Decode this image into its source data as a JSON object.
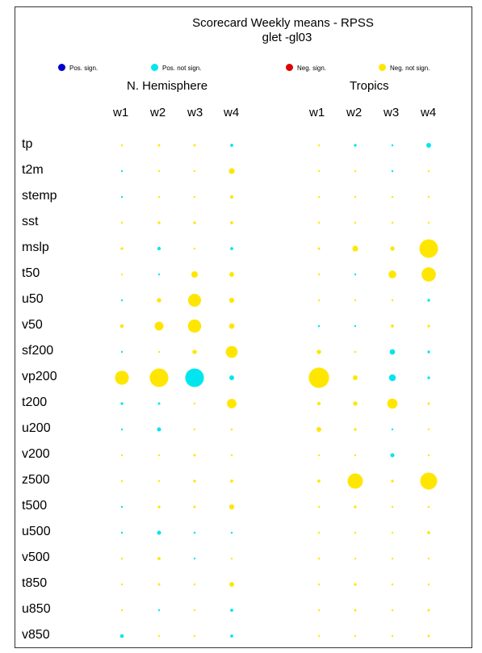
{
  "chart_data": {
    "type": "scatter",
    "title": "Scorecard Weekly means - RPSS",
    "subtitle": "glet  -gl03",
    "legend": [
      {
        "label": "Pos. sign.",
        "color": "#0000cc"
      },
      {
        "label": "Pos. not sign.",
        "color": "#00e5ee"
      },
      {
        "label": "Neg. sign.",
        "color": "#dd0000"
      },
      {
        "label": "Neg. not sign.",
        "color": "#ffe600"
      }
    ],
    "legend_placement": "top",
    "panels": [
      "N. Hemisphere",
      "Tropics"
    ],
    "weeks": [
      "w1",
      "w2",
      "w3",
      "w4"
    ],
    "variables": [
      "tp",
      "t2m",
      "stemp",
      "sst",
      "mslp",
      "t50",
      "u50",
      "v50",
      "sf200",
      "vp200",
      "t200",
      "u200",
      "v200",
      "z500",
      "t500",
      "u500",
      "v500",
      "t850",
      "u850",
      "v850"
    ],
    "size_scale": "relative magnitude 0-1",
    "cells": {
      "N. Hemisphere": [
        [
          [
            0.05,
            "Y"
          ],
          [
            0.07,
            "Y"
          ],
          [
            0.07,
            "Y"
          ],
          [
            0.09,
            "C"
          ]
        ],
        [
          [
            0.05,
            "C"
          ],
          [
            0.03,
            "Y"
          ],
          [
            0.03,
            "Y"
          ],
          [
            0.17,
            "Y"
          ]
        ],
        [
          [
            0.03,
            "C"
          ],
          [
            0.03,
            "Y"
          ],
          [
            0.03,
            "Y"
          ],
          [
            0.1,
            "Y"
          ]
        ],
        [
          [
            0.03,
            "Y"
          ],
          [
            0.08,
            "Y"
          ],
          [
            0.08,
            "Y"
          ],
          [
            0.09,
            "Y"
          ]
        ],
        [
          [
            0.08,
            "Y"
          ],
          [
            0.1,
            "C"
          ],
          [
            0.05,
            "Y"
          ],
          [
            0.09,
            "C"
          ]
        ],
        [
          [
            0.04,
            "Y"
          ],
          [
            0.03,
            "C"
          ],
          [
            0.19,
            "Y"
          ],
          [
            0.14,
            "Y"
          ]
        ],
        [
          [
            0.03,
            "C"
          ],
          [
            0.13,
            "Y"
          ],
          [
            0.38,
            "Y"
          ],
          [
            0.15,
            "Y"
          ]
        ],
        [
          [
            0.11,
            "Y"
          ],
          [
            0.26,
            "Y"
          ],
          [
            0.39,
            "Y"
          ],
          [
            0.16,
            "Y"
          ]
        ],
        [
          [
            0.04,
            "C"
          ],
          [
            0.04,
            "Y"
          ],
          [
            0.13,
            "Y"
          ],
          [
            0.35,
            "Y"
          ]
        ],
        [
          [
            0.41,
            "Y"
          ],
          [
            0.55,
            "Y"
          ],
          [
            0.55,
            "C"
          ],
          [
            0.14,
            "C"
          ]
        ],
        [
          [
            0.08,
            "C"
          ],
          [
            0.07,
            "C"
          ],
          [
            0.03,
            "Y"
          ],
          [
            0.28,
            "Y"
          ]
        ],
        [
          [
            0.03,
            "C"
          ],
          [
            0.12,
            "C"
          ],
          [
            0.03,
            "Y"
          ],
          [
            0.06,
            "Y"
          ]
        ],
        [
          [
            0.03,
            "Y"
          ],
          [
            0.04,
            "Y"
          ],
          [
            0.07,
            "Y"
          ],
          [
            0.03,
            "Y"
          ]
        ],
        [
          [
            0.04,
            "Y"
          ],
          [
            0.05,
            "Y"
          ],
          [
            0.08,
            "Y"
          ],
          [
            0.09,
            "Y"
          ]
        ],
        [
          [
            0.03,
            "C"
          ],
          [
            0.08,
            "Y"
          ],
          [
            0.07,
            "Y"
          ],
          [
            0.15,
            "Y"
          ]
        ],
        [
          [
            0.03,
            "C"
          ],
          [
            0.12,
            "C"
          ],
          [
            0.06,
            "C"
          ],
          [
            0.04,
            "C"
          ]
        ],
        [
          [
            0.03,
            "Y"
          ],
          [
            0.09,
            "Y"
          ],
          [
            0.04,
            "C"
          ],
          [
            0.02,
            "Y"
          ]
        ],
        [
          [
            0.03,
            "Y"
          ],
          [
            0.07,
            "Y"
          ],
          [
            0.04,
            "Y"
          ],
          [
            0.14,
            "Y"
          ]
        ],
        [
          [
            0.03,
            "Y"
          ],
          [
            0.04,
            "C"
          ],
          [
            0.03,
            "Y"
          ],
          [
            0.09,
            "C"
          ]
        ],
        [
          [
            0.11,
            "C"
          ],
          [
            0.05,
            "Y"
          ],
          [
            0.05,
            "Y"
          ],
          [
            0.09,
            "C"
          ]
        ]
      ],
      "Tropics": [
        [
          [
            0.02,
            "Y"
          ],
          [
            0.08,
            "C"
          ],
          [
            0.06,
            "C"
          ],
          [
            0.14,
            "C"
          ]
        ],
        [
          [
            0.02,
            "Y"
          ],
          [
            0.02,
            "Y"
          ],
          [
            0.02,
            "C"
          ],
          [
            0.02,
            "Y"
          ]
        ],
        [
          [
            0.02,
            "Y"
          ],
          [
            0.02,
            "Y"
          ],
          [
            0.02,
            "Y"
          ],
          [
            0.03,
            "Y"
          ]
        ],
        [
          [
            0.02,
            "Y"
          ],
          [
            0.04,
            "Y"
          ],
          [
            0.04,
            "Y"
          ],
          [
            0.05,
            "Y"
          ]
        ],
        [
          [
            0.07,
            "Y"
          ],
          [
            0.17,
            "Y"
          ],
          [
            0.13,
            "Y"
          ],
          [
            0.55,
            "Y"
          ]
        ],
        [
          [
            0.02,
            "Y"
          ],
          [
            0.03,
            "C"
          ],
          [
            0.23,
            "Y"
          ],
          [
            0.42,
            "Y"
          ]
        ],
        [
          [
            0.02,
            "Y"
          ],
          [
            0.04,
            "Y"
          ],
          [
            0.04,
            "Y"
          ],
          [
            0.08,
            "C"
          ]
        ],
        [
          [
            0.06,
            "C"
          ],
          [
            0.03,
            "C"
          ],
          [
            0.09,
            "Y"
          ],
          [
            0.08,
            "Y"
          ]
        ],
        [
          [
            0.13,
            "Y"
          ],
          [
            0.06,
            "Y"
          ],
          [
            0.16,
            "C"
          ],
          [
            0.08,
            "C"
          ]
        ],
        [
          [
            0.6,
            "Y"
          ],
          [
            0.14,
            "Y"
          ],
          [
            0.2,
            "C"
          ],
          [
            0.08,
            "C"
          ]
        ],
        [
          [
            0.1,
            "Y"
          ],
          [
            0.13,
            "Y"
          ],
          [
            0.3,
            "Y"
          ],
          [
            0.07,
            "Y"
          ]
        ],
        [
          [
            0.14,
            "Y"
          ],
          [
            0.08,
            "Y"
          ],
          [
            0.03,
            "C"
          ],
          [
            0.02,
            "Y"
          ]
        ],
        [
          [
            0.03,
            "Y"
          ],
          [
            0.02,
            "Y"
          ],
          [
            0.12,
            "C"
          ],
          [
            0.05,
            "Y"
          ]
        ],
        [
          [
            0.09,
            "Y"
          ],
          [
            0.45,
            "Y"
          ],
          [
            0.08,
            "Y"
          ],
          [
            0.5,
            "Y"
          ]
        ],
        [
          [
            0.03,
            "Y"
          ],
          [
            0.08,
            "Y"
          ],
          [
            0.04,
            "Y"
          ],
          [
            0.06,
            "Y"
          ]
        ],
        [
          [
            0.04,
            "Y"
          ],
          [
            0.03,
            "Y"
          ],
          [
            0.03,
            "Y"
          ],
          [
            0.09,
            "Y"
          ]
        ],
        [
          [
            0.06,
            "Y"
          ],
          [
            0.03,
            "Y"
          ],
          [
            0.03,
            "Y"
          ],
          [
            0.03,
            "Y"
          ]
        ],
        [
          [
            0.03,
            "Y"
          ],
          [
            0.08,
            "Y"
          ],
          [
            0.06,
            "Y"
          ],
          [
            0.06,
            "Y"
          ]
        ],
        [
          [
            0.03,
            "Y"
          ],
          [
            0.07,
            "Y"
          ],
          [
            0.04,
            "Y"
          ],
          [
            0.07,
            "Y"
          ]
        ],
        [
          [
            0.05,
            "Y"
          ],
          [
            0.03,
            "Y"
          ],
          [
            0.03,
            "Y"
          ],
          [
            0.07,
            "Y"
          ]
        ]
      ]
    }
  }
}
